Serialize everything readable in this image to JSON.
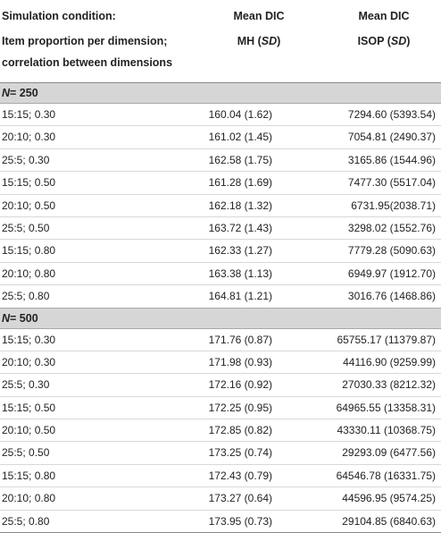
{
  "header": {
    "col1_line1": "Simulation condition:",
    "col1_line2": "Item proportion per dimension;",
    "col1_line3": "correlation between dimensions",
    "col2_line1": "Mean DIC",
    "col2_line2_prefix": "MH (",
    "col2_line2_sd": "SD",
    "col2_line2_suffix": ")",
    "col3_line1": "Mean DIC",
    "col3_line2_prefix": "ISOP (",
    "col3_line2_sd": "SD",
    "col3_line2_suffix": ")"
  },
  "groups": [
    {
      "label_n": "N",
      "label_rest": " = 250",
      "rows": [
        {
          "condition": "15:15; 0.30",
          "mh": "160.04 (1.62)",
          "isop": "7294.60 (5393.54)"
        },
        {
          "condition": "20:10; 0.30",
          "mh": "161.02 (1.45)",
          "isop": "7054.81 (2490.37)"
        },
        {
          "condition": "25:5; 0.30",
          "mh": "162.58 (1.75)",
          "isop": "3165.86 (1544.96)"
        },
        {
          "condition": "15:15; 0.50",
          "mh": "161.28 (1.69)",
          "isop": "7477.30 (5517.04)"
        },
        {
          "condition": "20:10; 0.50",
          "mh": "162.18 (1.32)",
          "isop": "6731.95(2038.71)"
        },
        {
          "condition": "25:5; 0.50",
          "mh": "163.72 (1.43)",
          "isop": "3298.02 (1552.76)"
        },
        {
          "condition": "15:15; 0.80",
          "mh": "162.33 (1.27)",
          "isop": "7779.28 (5090.63)"
        },
        {
          "condition": "20:10; 0.80",
          "mh": "163.38 (1.13)",
          "isop": "6949.97 (1912.70)"
        },
        {
          "condition": "25:5; 0.80",
          "mh": "164.81 (1.21)",
          "isop": "3016.76 (1468.86)"
        }
      ]
    },
    {
      "label_n": "N",
      "label_rest": " = 500",
      "rows": [
        {
          "condition": "15:15; 0.30",
          "mh": "171.76 (0.87)",
          "isop": "65755.17 (11379.87)"
        },
        {
          "condition": "20:10; 0.30",
          "mh": "171.98 (0.93)",
          "isop": "44116.90 (9259.99)"
        },
        {
          "condition": "25:5; 0.30",
          "mh": "172.16 (0.92)",
          "isop": "27030.33 (8212.32)"
        },
        {
          "condition": "15:15; 0.50",
          "mh": "172.25 (0.95)",
          "isop": "64965.55 (13358.31)"
        },
        {
          "condition": "20:10; 0.50",
          "mh": "172.85 (0.82)",
          "isop": "43330.11 (10368.75)"
        },
        {
          "condition": "25:5; 0.50",
          "mh": "173.25 (0.74)",
          "isop": "29293.09 (6477.56)"
        },
        {
          "condition": "15:15; 0.80",
          "mh": "172.43 (0.79)",
          "isop": "64546.78 (16331.75)"
        },
        {
          "condition": "20:10; 0.80",
          "mh": "173.27 (0.64)",
          "isop": "44596.95 (9574.25)"
        },
        {
          "condition": "25:5; 0.80",
          "mh": "173.95 (0.73)",
          "isop": "29104.85 (6840.63)"
        }
      ]
    }
  ]
}
